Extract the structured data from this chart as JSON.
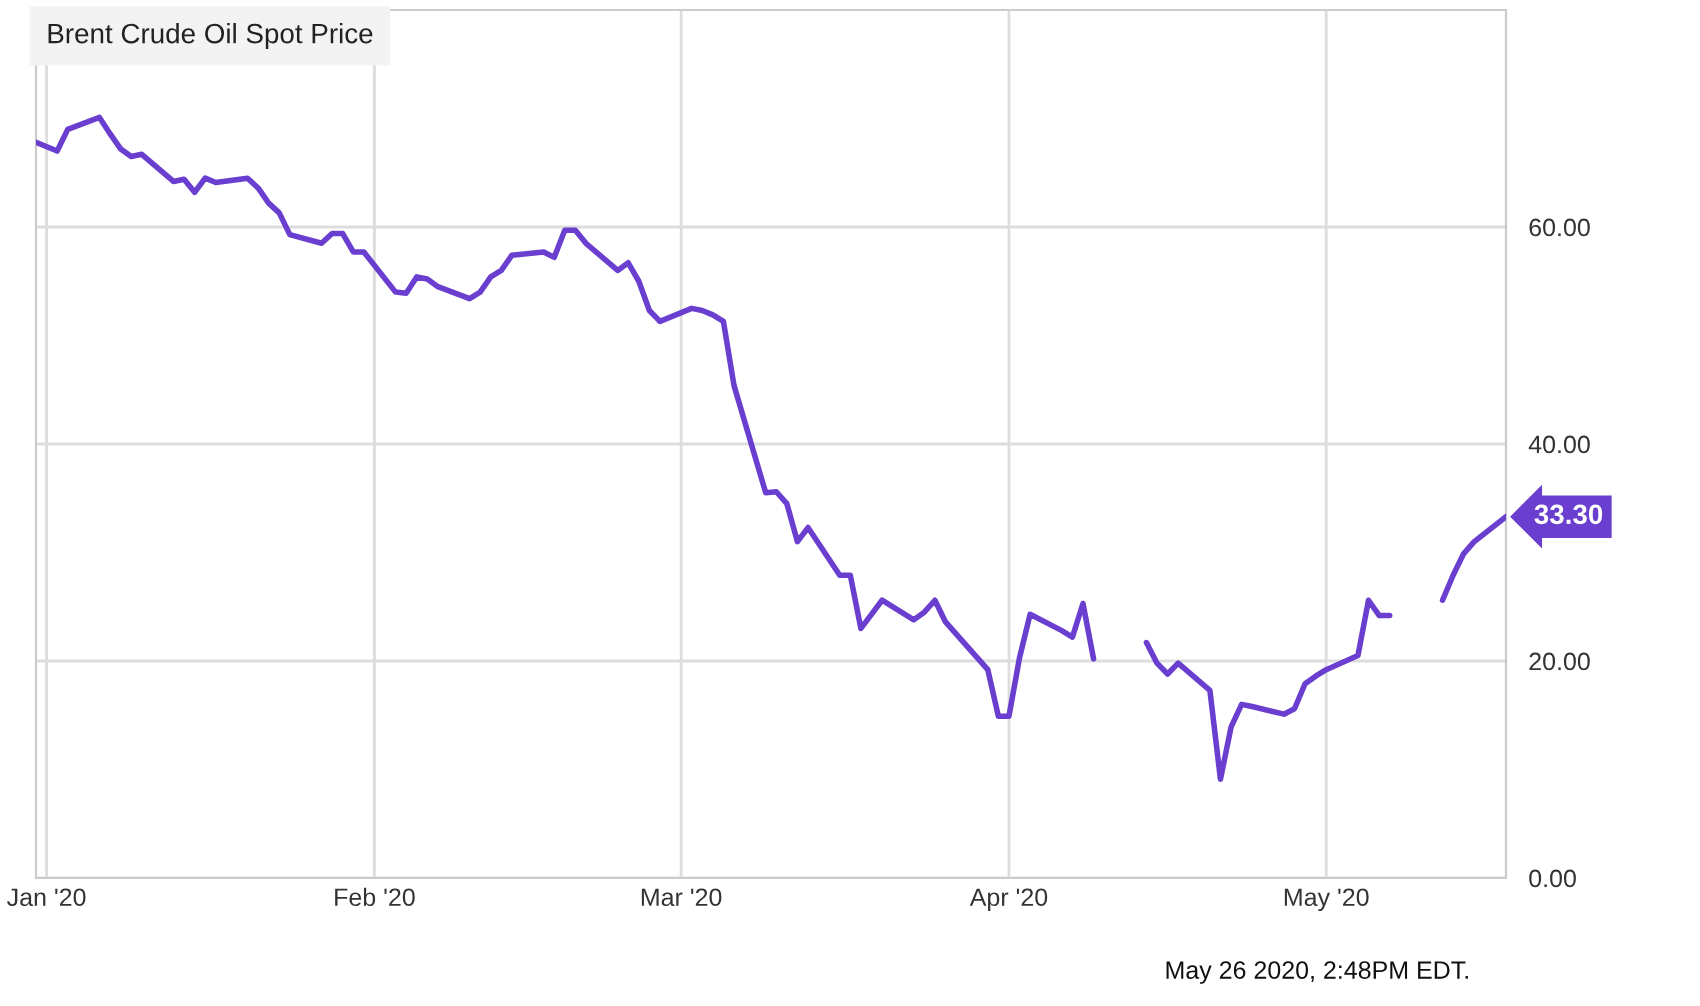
{
  "chart_data": {
    "type": "line",
    "title": "Brent Crude Oil Spot Price",
    "x": [
      "2019-12-31",
      "2020-01-02",
      "2020-01-03",
      "2020-01-06",
      "2020-01-07",
      "2020-01-08",
      "2020-01-09",
      "2020-01-10",
      "2020-01-13",
      "2020-01-14",
      "2020-01-15",
      "2020-01-16",
      "2020-01-17",
      "2020-01-20",
      "2020-01-21",
      "2020-01-22",
      "2020-01-23",
      "2020-01-24",
      "2020-01-27",
      "2020-01-28",
      "2020-01-29",
      "2020-01-30",
      "2020-01-31",
      "2020-02-03",
      "2020-02-04",
      "2020-02-05",
      "2020-02-06",
      "2020-02-07",
      "2020-02-10",
      "2020-02-11",
      "2020-02-12",
      "2020-02-13",
      "2020-02-14",
      "2020-02-17",
      "2020-02-18",
      "2020-02-19",
      "2020-02-20",
      "2020-02-21",
      "2020-02-24",
      "2020-02-25",
      "2020-02-26",
      "2020-02-27",
      "2020-02-28",
      "2020-03-02",
      "2020-03-03",
      "2020-03-04",
      "2020-03-05",
      "2020-03-06",
      "2020-03-09",
      "2020-03-10",
      "2020-03-11",
      "2020-03-12",
      "2020-03-13",
      "2020-03-16",
      "2020-03-17",
      "2020-03-18",
      "2020-03-19",
      "2020-03-20",
      "2020-03-23",
      "2020-03-24",
      "2020-03-25",
      "2020-03-26",
      "2020-03-27",
      "2020-03-30",
      "2020-03-31",
      "2020-04-01",
      "2020-04-02",
      "2020-04-03",
      "2020-04-06",
      "2020-04-07",
      "2020-04-08",
      "2020-04-09",
      "2020-04-10",
      "2020-04-13",
      "2020-04-14",
      "2020-04-15",
      "2020-04-16",
      "2020-04-17",
      "2020-04-20",
      "2020-04-21",
      "2020-04-22",
      "2020-04-23",
      "2020-04-24",
      "2020-04-27",
      "2020-04-28",
      "2020-04-29",
      "2020-04-30",
      "2020-05-01",
      "2020-05-04",
      "2020-05-05",
      "2020-05-06",
      "2020-05-07",
      "2020-05-08",
      "2020-05-11",
      "2020-05-12",
      "2020-05-13",
      "2020-05-14",
      "2020-05-15",
      "2020-05-18"
    ],
    "series": [
      {
        "color": "#6a3fd0",
        "values": [
          67.8,
          67.0,
          69.0,
          70.1,
          68.6,
          67.2,
          66.5,
          66.7,
          64.2,
          64.4,
          63.2,
          64.5,
          64.1,
          64.5,
          63.6,
          62.2,
          61.3,
          59.3,
          58.5,
          59.4,
          59.4,
          57.7,
          57.7,
          54.0,
          53.9,
          55.4,
          55.2,
          54.5,
          53.4,
          54.0,
          55.4,
          56.0,
          57.4,
          57.7,
          57.2,
          59.7,
          59.7,
          58.5,
          56.0,
          56.7,
          55.0,
          52.3,
          51.3,
          52.5,
          52.3,
          51.9,
          51.3,
          45.4,
          35.5,
          35.6,
          34.5,
          31.0,
          32.3,
          27.9,
          27.9,
          23.0,
          24.3,
          25.6,
          23.8,
          24.5,
          25.6,
          23.6,
          22.5,
          19.2,
          14.9,
          14.9,
          20.3,
          24.3,
          22.8,
          22.2,
          25.3,
          20.2,
          null,
          null,
          21.7,
          19.8,
          18.8,
          19.8,
          17.3,
          9.1,
          13.9,
          16.0,
          15.8,
          15.1,
          15.6,
          17.9,
          18.6,
          19.2,
          20.5,
          25.6,
          24.2,
          24.2,
          null,
          null,
          25.6,
          27.9,
          29.9,
          31.0,
          33.3
        ],
        "value_labels": [
          null,
          null,
          null,
          null,
          null,
          null,
          null,
          null,
          null,
          null,
          null,
          null,
          null,
          null,
          null,
          null,
          null,
          null,
          null,
          null,
          null,
          null,
          null,
          null,
          null,
          null,
          null,
          null,
          null,
          null,
          null,
          null,
          null,
          null,
          null,
          null,
          null,
          null,
          null,
          null,
          null,
          null,
          null,
          null,
          null,
          null,
          null,
          null,
          null,
          null,
          null,
          null,
          null,
          null,
          null,
          null,
          null,
          null,
          null,
          null,
          null,
          null,
          null,
          null,
          null,
          null,
          null,
          null,
          null,
          null,
          null,
          null,
          null,
          null,
          null,
          null,
          null,
          null,
          null,
          null,
          null,
          null,
          null,
          null,
          null,
          null,
          null,
          null,
          null,
          null,
          null,
          null,
          null,
          null,
          null,
          null,
          null,
          null,
          "33.30"
        ]
      }
    ],
    "xlim": [
      "2019-12-31",
      "2020-05-18"
    ],
    "xticks": [
      {
        "value": "2020-01-01",
        "label": "Jan '20"
      },
      {
        "value": "2020-02-01",
        "label": "Feb '20"
      },
      {
        "value": "2020-03-01",
        "label": "Mar '20"
      },
      {
        "value": "2020-04-01",
        "label": "Apr '20"
      },
      {
        "value": "2020-05-01",
        "label": "May '20"
      }
    ],
    "ylim": [
      0,
      80
    ],
    "yticks": [
      {
        "value": 0,
        "label": "0.00"
      },
      {
        "value": 20,
        "label": "20.00"
      },
      {
        "value": 40,
        "label": "40.00"
      },
      {
        "value": 60,
        "label": "60.00"
      }
    ],
    "grid": true,
    "legend": false,
    "annotations": [
      "May 26 2020, 2:48PM EDT."
    ]
  }
}
